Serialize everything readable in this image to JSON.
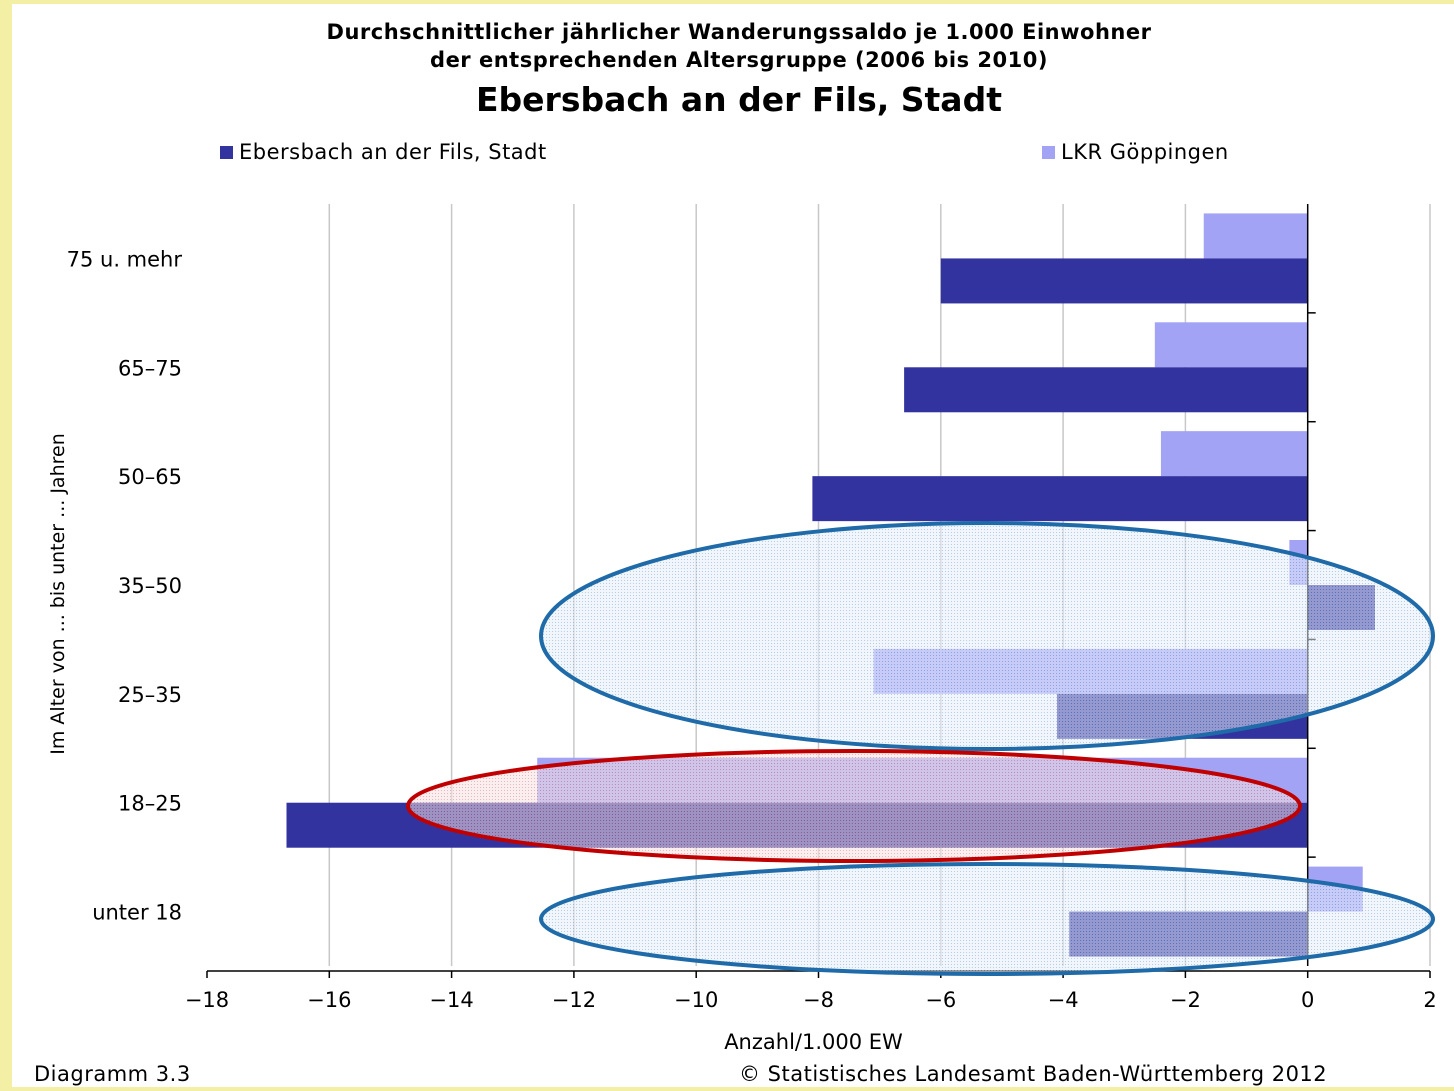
{
  "chart_data": {
    "type": "bar",
    "orientation": "horizontal",
    "title": "Durchschnittlicher jährlicher Wanderungssaldo je 1.000 Einwohner",
    "title_line2": "der entsprechenden Altersgruppe (2006 bis 2010)",
    "subtitle": "Ebersbach an der Fils, Stadt",
    "xlabel": "Anzahl/1.000 EW",
    "ylabel": "Im Alter von ... bis unter ... Jahren",
    "xlim": [
      -18,
      2
    ],
    "xticks": [
      -18,
      -16,
      -14,
      -12,
      -10,
      -8,
      -6,
      -4,
      -2,
      0,
      2
    ],
    "xtick_labels": [
      "−18",
      "−16",
      "−14",
      "−12",
      "−10",
      "−8",
      "−6",
      "−4",
      "−2",
      "0",
      "2"
    ],
    "categories": [
      "75 u. mehr",
      "65–75",
      "50–65",
      "35–50",
      "25–35",
      "18–25",
      "unter 18"
    ],
    "series": [
      {
        "name": "Ebersbach an der Fils, Stadt",
        "color": "#3333a0",
        "values": [
          -6.0,
          -6.6,
          -8.1,
          1.1,
          -4.1,
          -16.7,
          -3.9
        ]
      },
      {
        "name": "LKR Göppingen",
        "color": "#a3a3f5",
        "values": [
          -1.7,
          -2.5,
          -2.4,
          -0.3,
          -7.1,
          -12.6,
          0.9
        ]
      }
    ],
    "grid": true,
    "legend_position": "top",
    "highlights": [
      {
        "categories": [
          "35–50",
          "25–35"
        ],
        "color": "#1f6aa8"
      },
      {
        "categories": [
          "18–25"
        ],
        "color": "#c00000"
      },
      {
        "categories": [
          "unter 18"
        ],
        "color": "#1f6aa8"
      }
    ]
  },
  "footer": {
    "left": "Diagramm 3.3",
    "right": "© Statistisches Landesamt Baden-Württemberg 2012"
  }
}
